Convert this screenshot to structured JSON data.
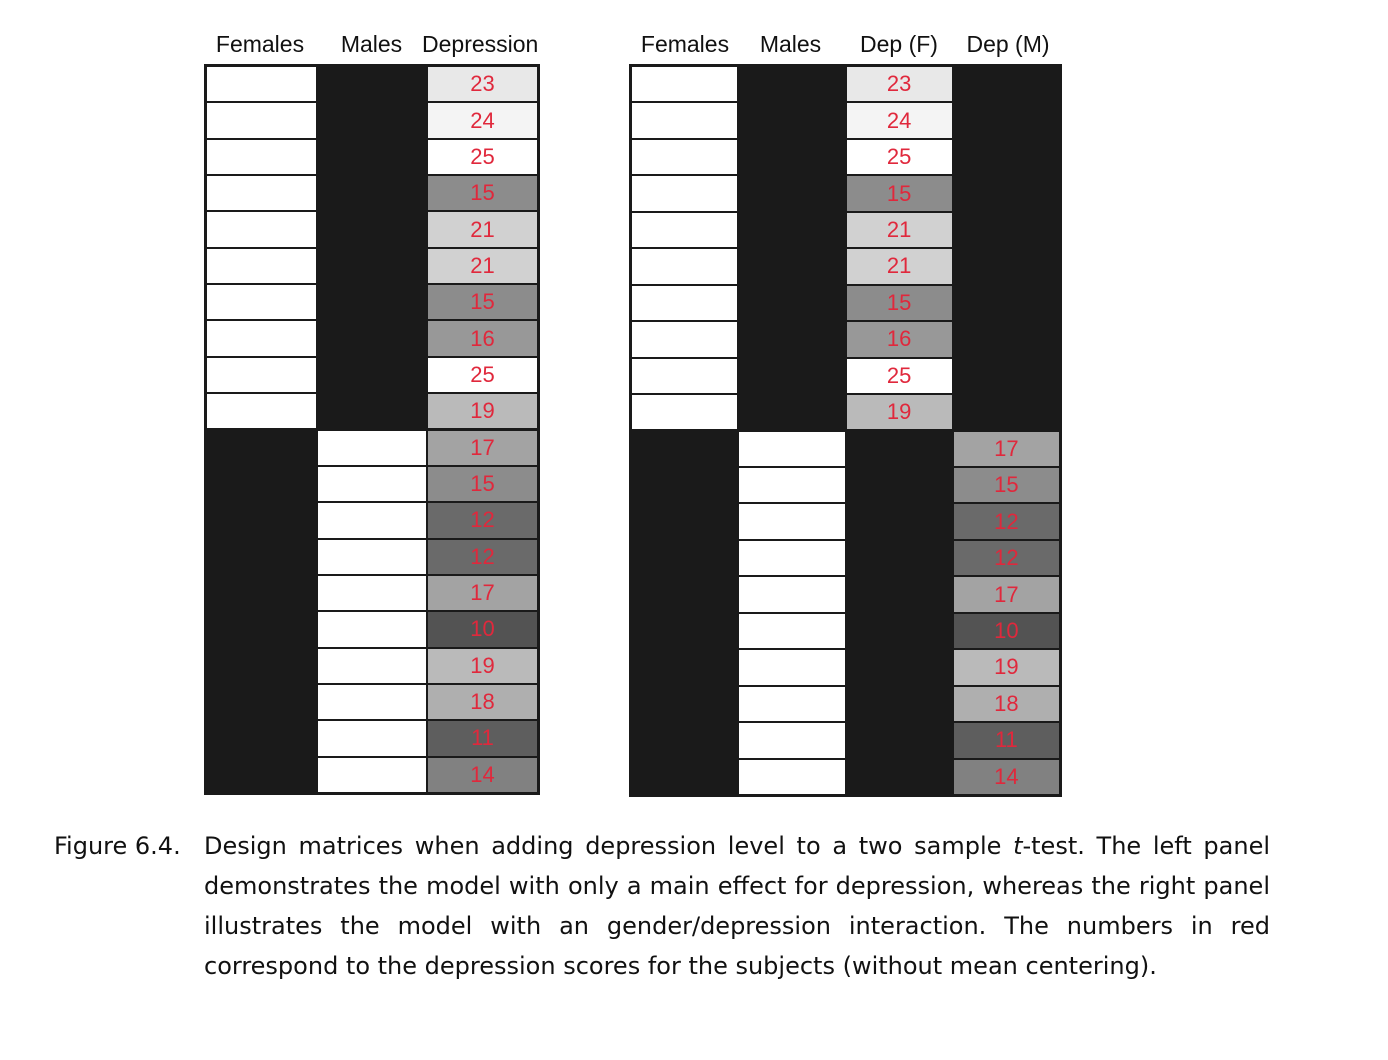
{
  "left_panel": {
    "headers": [
      "Females",
      "Males",
      "Depression"
    ],
    "depression": [
      23,
      24,
      25,
      15,
      21,
      21,
      15,
      16,
      25,
      19,
      17,
      15,
      12,
      12,
      17,
      10,
      19,
      18,
      11,
      14
    ]
  },
  "right_panel": {
    "headers": [
      "Females",
      "Males",
      "Dep (F)",
      "Dep (M)"
    ],
    "dep_f": [
      23,
      24,
      25,
      15,
      21,
      21,
      15,
      16,
      25,
      19
    ],
    "dep_m": [
      17,
      15,
      12,
      12,
      17,
      10,
      19,
      18,
      11,
      14
    ]
  },
  "caption": {
    "label": "Figure 6.4.",
    "text_before": "Design matrices when adding depression level to a two sample ",
    "text_italic": "t",
    "text_after": "-test. The left panel demonstrates the model with only a main effect for depression, whereas the right panel illustrates the model with an gender/depression interaction. The numbers in red correspond to the depression scores for the subjects (without mean centering)."
  },
  "colors": {
    "dark": "#1a1a1a",
    "light": "#ffffff",
    "number": "#e0283c"
  }
}
